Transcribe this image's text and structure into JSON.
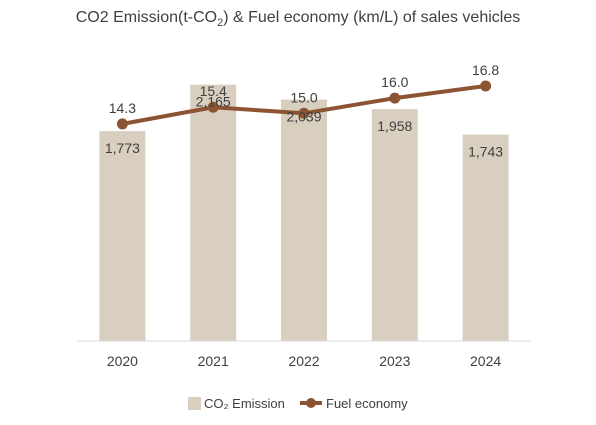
{
  "chart_data": {
    "type": "bar",
    "title": "CO2 Emission(t-CO₂) & Fuel economy (km/L) of sales vehicles",
    "categories": [
      "2020",
      "2021",
      "2022",
      "2023",
      "2024"
    ],
    "series": [
      {
        "name": "CO₂ Emission",
        "type": "bar",
        "values": [
          1773,
          2165,
          2039,
          1958,
          1743
        ],
        "labels": [
          "1,773",
          "2,165",
          "2,039",
          "1,958",
          "1,743"
        ],
        "color": "#d9cfc1",
        "ylim": [
          0,
          2500
        ]
      },
      {
        "name": "Fuel economy",
        "type": "line",
        "values": [
          14.3,
          15.4,
          15.0,
          16.0,
          16.8
        ],
        "labels": [
          "14.3",
          "15.4",
          "15.0",
          "16.0",
          "16.8"
        ],
        "color": "#8c5433",
        "ylim": [
          0,
          19.5
        ]
      }
    ],
    "xlabel": "",
    "ylabel": "",
    "grid": false,
    "legend": "bottom"
  }
}
